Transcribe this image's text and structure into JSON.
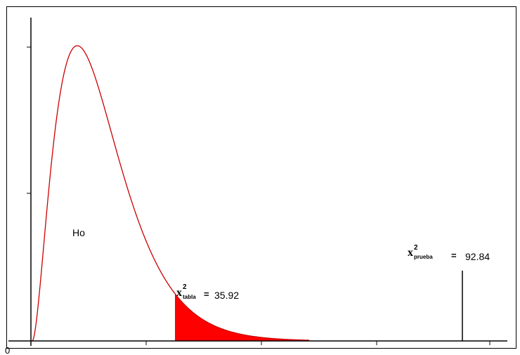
{
  "diagram": {
    "origin_label": "0",
    "region_label": "Ho",
    "critical": {
      "symbol": "x",
      "superscript": "2",
      "subscript": "tabla",
      "equals": "=",
      "value": "35.92"
    },
    "test": {
      "symbol": "x",
      "superscript": "2",
      "subscript": "prueba",
      "equals": "=",
      "value": "92.84"
    },
    "colors": {
      "curve": "#cc0000",
      "rejection_fill": "#ff0000",
      "axes": "#000000",
      "frame": "#000000"
    }
  }
}
